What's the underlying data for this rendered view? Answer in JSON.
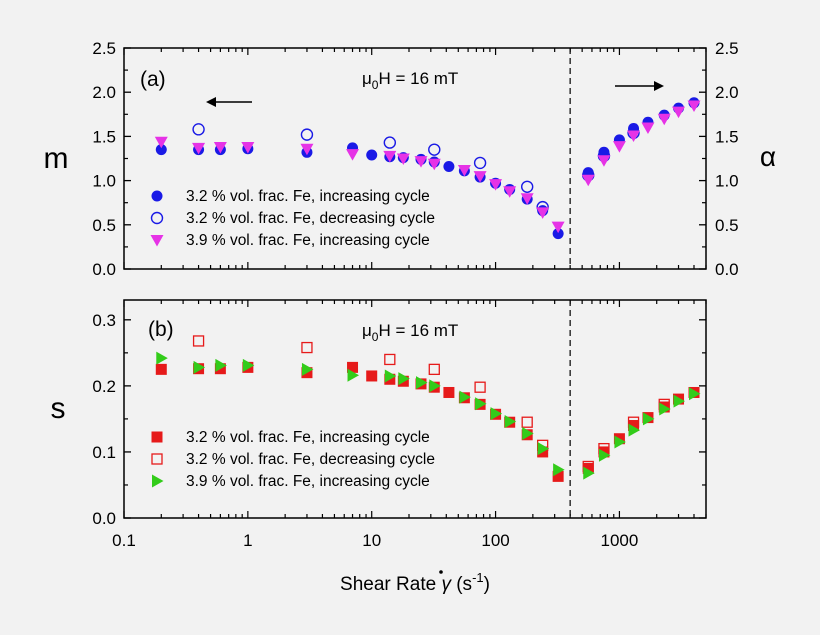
{
  "chart_data": [
    {
      "type": "scatter",
      "panel_label": "(a)",
      "annotation": "μ₀H = 16 mT",
      "annotation_main": "H = 16 mT",
      "annotation_mu": "μ",
      "annotation_sub": "0",
      "ylabel_left": "m",
      "ylabel_right": "α",
      "xscale": "log",
      "xlim": [
        0.1,
        5000
      ],
      "ylim": [
        0.0,
        2.5
      ],
      "yticks": [
        "0.0",
        "0.5",
        "1.0",
        "1.5",
        "2.0",
        "2.5"
      ],
      "divider_x": 400,
      "legend_position": "lower-left",
      "series": [
        {
          "name": "3.2 % vol. frac. Fe, increasing cycle",
          "marker": "circle-filled",
          "color": "#1a1ae6",
          "points": [
            {
              "x": 0.2,
              "y": 1.35
            },
            {
              "x": 0.4,
              "y": 1.35
            },
            {
              "x": 0.6,
              "y": 1.35
            },
            {
              "x": 1.0,
              "y": 1.36
            },
            {
              "x": 3.0,
              "y": 1.32
            },
            {
              "x": 7.0,
              "y": 1.37
            },
            {
              "x": 10,
              "y": 1.29
            },
            {
              "x": 14,
              "y": 1.27
            },
            {
              "x": 18,
              "y": 1.26
            },
            {
              "x": 25,
              "y": 1.24
            },
            {
              "x": 32,
              "y": 1.21
            },
            {
              "x": 42,
              "y": 1.16
            },
            {
              "x": 56,
              "y": 1.11
            },
            {
              "x": 75,
              "y": 1.04
            },
            {
              "x": 100,
              "y": 0.97
            },
            {
              "x": 130,
              "y": 0.9
            },
            {
              "x": 180,
              "y": 0.79
            },
            {
              "x": 240,
              "y": 0.66
            },
            {
              "x": 320,
              "y": 0.4
            },
            {
              "x": 560,
              "y": 1.09
            },
            {
              "x": 750,
              "y": 1.32
            },
            {
              "x": 1000,
              "y": 1.46
            },
            {
              "x": 1300,
              "y": 1.59
            },
            {
              "x": 1700,
              "y": 1.66
            },
            {
              "x": 2300,
              "y": 1.74
            },
            {
              "x": 3000,
              "y": 1.82
            },
            {
              "x": 4000,
              "y": 1.88
            }
          ]
        },
        {
          "name": "3.2 % vol. frac. Fe, decreasing  cycle",
          "marker": "circle-open",
          "color": "#1a1ae6",
          "points": [
            {
              "x": 0.4,
              "y": 1.58
            },
            {
              "x": 3.0,
              "y": 1.52
            },
            {
              "x": 14,
              "y": 1.43
            },
            {
              "x": 32,
              "y": 1.35
            },
            {
              "x": 75,
              "y": 1.2
            },
            {
              "x": 180,
              "y": 0.93
            },
            {
              "x": 240,
              "y": 0.7
            },
            {
              "x": 560,
              "y": 1.06
            },
            {
              "x": 750,
              "y": 1.28
            },
            {
              "x": 1300,
              "y": 1.54
            }
          ]
        },
        {
          "name": "3.9 % vol. frac. Fe, increasing  cycle",
          "marker": "triangle-down-filled",
          "color": "#e633e6",
          "points": [
            {
              "x": 0.2,
              "y": 1.44
            },
            {
              "x": 0.4,
              "y": 1.37
            },
            {
              "x": 0.6,
              "y": 1.38
            },
            {
              "x": 1.0,
              "y": 1.38
            },
            {
              "x": 3.0,
              "y": 1.36
            },
            {
              "x": 7.0,
              "y": 1.3
            },
            {
              "x": 14,
              "y": 1.28
            },
            {
              "x": 18,
              "y": 1.25
            },
            {
              "x": 25,
              "y": 1.22
            },
            {
              "x": 32,
              "y": 1.19
            },
            {
              "x": 56,
              "y": 1.12
            },
            {
              "x": 75,
              "y": 1.05
            },
            {
              "x": 100,
              "y": 0.96
            },
            {
              "x": 130,
              "y": 0.88
            },
            {
              "x": 180,
              "y": 0.8
            },
            {
              "x": 240,
              "y": 0.64
            },
            {
              "x": 320,
              "y": 0.48
            },
            {
              "x": 560,
              "y": 1.01
            },
            {
              "x": 750,
              "y": 1.23
            },
            {
              "x": 1000,
              "y": 1.39
            },
            {
              "x": 1300,
              "y": 1.51
            },
            {
              "x": 1700,
              "y": 1.6
            },
            {
              "x": 2300,
              "y": 1.7
            },
            {
              "x": 3000,
              "y": 1.78
            },
            {
              "x": 4000,
              "y": 1.85
            }
          ]
        }
      ]
    },
    {
      "type": "scatter",
      "panel_label": "(b)",
      "annotation": "μ₀H = 16 mT",
      "annotation_main": "H = 16 mT",
      "annotation_mu": "μ",
      "annotation_sub": "0",
      "ylabel_left": "s",
      "xscale": "log",
      "xlim": [
        0.1,
        5000
      ],
      "ylim": [
        0.0,
        0.33
      ],
      "yticks": [
        "0.0",
        "0.1",
        "0.2",
        "0.3"
      ],
      "divider_x": 400,
      "legend_position": "lower-left",
      "series": [
        {
          "name": "3.2 % vol. frac. Fe, increasing cycle",
          "marker": "square-filled",
          "color": "#e61a1a",
          "points": [
            {
              "x": 0.2,
              "y": 0.225
            },
            {
              "x": 0.4,
              "y": 0.226
            },
            {
              "x": 0.6,
              "y": 0.226
            },
            {
              "x": 1.0,
              "y": 0.228
            },
            {
              "x": 3.0,
              "y": 0.22
            },
            {
              "x": 7.0,
              "y": 0.228
            },
            {
              "x": 10,
              "y": 0.215
            },
            {
              "x": 14,
              "y": 0.21
            },
            {
              "x": 18,
              "y": 0.207
            },
            {
              "x": 25,
              "y": 0.203
            },
            {
              "x": 32,
              "y": 0.198
            },
            {
              "x": 42,
              "y": 0.19
            },
            {
              "x": 56,
              "y": 0.182
            },
            {
              "x": 75,
              "y": 0.172
            },
            {
              "x": 100,
              "y": 0.157
            },
            {
              "x": 130,
              "y": 0.145
            },
            {
              "x": 180,
              "y": 0.126
            },
            {
              "x": 240,
              "y": 0.1
            },
            {
              "x": 320,
              "y": 0.063
            },
            {
              "x": 560,
              "y": 0.075
            },
            {
              "x": 750,
              "y": 0.1
            },
            {
              "x": 1000,
              "y": 0.12
            },
            {
              "x": 1300,
              "y": 0.14
            },
            {
              "x": 1700,
              "y": 0.152
            },
            {
              "x": 2300,
              "y": 0.168
            },
            {
              "x": 3000,
              "y": 0.18
            },
            {
              "x": 4000,
              "y": 0.19
            }
          ]
        },
        {
          "name": "3.2 % vol. frac. Fe, decreasing cycle",
          "marker": "square-open",
          "color": "#e61a1a",
          "points": [
            {
              "x": 0.4,
              "y": 0.268
            },
            {
              "x": 3.0,
              "y": 0.258
            },
            {
              "x": 14,
              "y": 0.24
            },
            {
              "x": 32,
              "y": 0.225
            },
            {
              "x": 75,
              "y": 0.198
            },
            {
              "x": 180,
              "y": 0.145
            },
            {
              "x": 240,
              "y": 0.11
            },
            {
              "x": 560,
              "y": 0.078
            },
            {
              "x": 750,
              "y": 0.105
            },
            {
              "x": 1300,
              "y": 0.145
            },
            {
              "x": 2300,
              "y": 0.172
            }
          ]
        },
        {
          "name": "3.9 % vol. frac. Fe, increasing cycle",
          "marker": "triangle-right-filled",
          "color": "#33cc1a",
          "points": [
            {
              "x": 0.2,
              "y": 0.242
            },
            {
              "x": 0.4,
              "y": 0.228
            },
            {
              "x": 0.6,
              "y": 0.231
            },
            {
              "x": 1.0,
              "y": 0.231
            },
            {
              "x": 3.0,
              "y": 0.225
            },
            {
              "x": 7.0,
              "y": 0.216
            },
            {
              "x": 14,
              "y": 0.215
            },
            {
              "x": 18,
              "y": 0.211
            },
            {
              "x": 25,
              "y": 0.205
            },
            {
              "x": 32,
              "y": 0.2
            },
            {
              "x": 56,
              "y": 0.183
            },
            {
              "x": 75,
              "y": 0.173
            },
            {
              "x": 100,
              "y": 0.158
            },
            {
              "x": 130,
              "y": 0.146
            },
            {
              "x": 180,
              "y": 0.128
            },
            {
              "x": 240,
              "y": 0.105
            },
            {
              "x": 320,
              "y": 0.073
            },
            {
              "x": 560,
              "y": 0.068
            },
            {
              "x": 750,
              "y": 0.095
            },
            {
              "x": 1000,
              "y": 0.115
            },
            {
              "x": 1300,
              "y": 0.133
            },
            {
              "x": 1700,
              "y": 0.15
            },
            {
              "x": 2300,
              "y": 0.165
            },
            {
              "x": 3000,
              "y": 0.177
            },
            {
              "x": 4000,
              "y": 0.188
            }
          ]
        }
      ]
    }
  ],
  "x_axis": {
    "label": "Shear Rate",
    "label_symbol": "γ",
    "label_unit_open": "(s",
    "label_unit_exp": "-1",
    "label_unit_close": ")",
    "ticks": [
      {
        "value": 0.1,
        "label": "0.1"
      },
      {
        "value": 1,
        "label": "1"
      },
      {
        "value": 10,
        "label": "10"
      },
      {
        "value": 100,
        "label": "100"
      },
      {
        "value": 1000,
        "label": "1000"
      }
    ]
  }
}
